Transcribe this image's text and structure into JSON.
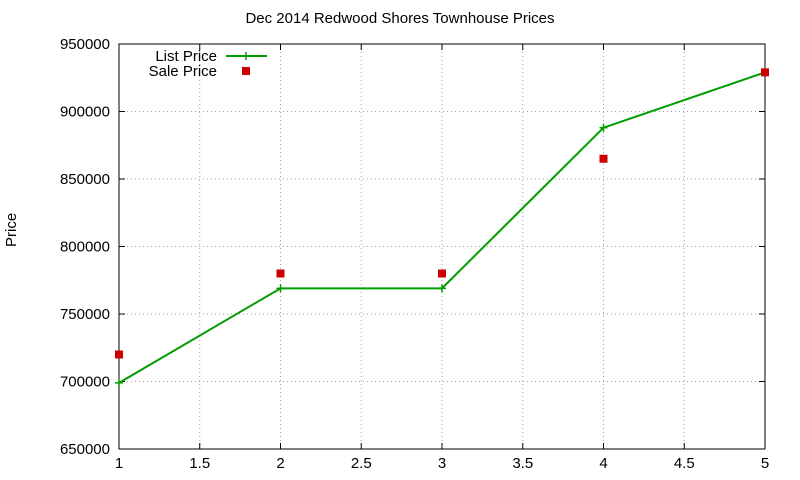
{
  "chart_data": {
    "type": "line",
    "title": "Dec 2014 Redwood Shores Townhouse Prices",
    "xlabel": "",
    "ylabel": "Price",
    "xlim": [
      1,
      5
    ],
    "ylim": [
      650000,
      950000
    ],
    "x_ticks": [
      "1",
      "1.5",
      "2",
      "2.5",
      "3",
      "3.5",
      "4",
      "4.5",
      "5"
    ],
    "x_tick_values": [
      1,
      1.5,
      2,
      2.5,
      3,
      3.5,
      4,
      4.5,
      5
    ],
    "y_ticks": [
      "650000",
      "700000",
      "750000",
      "800000",
      "850000",
      "900000",
      "950000"
    ],
    "y_tick_values": [
      650000,
      700000,
      750000,
      800000,
      850000,
      900000,
      950000
    ],
    "grid": true,
    "legend_position": "top-left",
    "series": [
      {
        "name": "List Price",
        "style": "line-with-plus-markers",
        "color": "#009e00",
        "x": [
          1,
          2,
          3,
          4,
          5
        ],
        "y": [
          699000,
          769000,
          769000,
          888000,
          929000
        ]
      },
      {
        "name": "Sale Price",
        "style": "square-markers",
        "color": "#cc0000",
        "x": [
          1,
          2,
          3,
          4,
          5
        ],
        "y": [
          720000,
          780000,
          780000,
          865000,
          929000
        ]
      }
    ]
  }
}
